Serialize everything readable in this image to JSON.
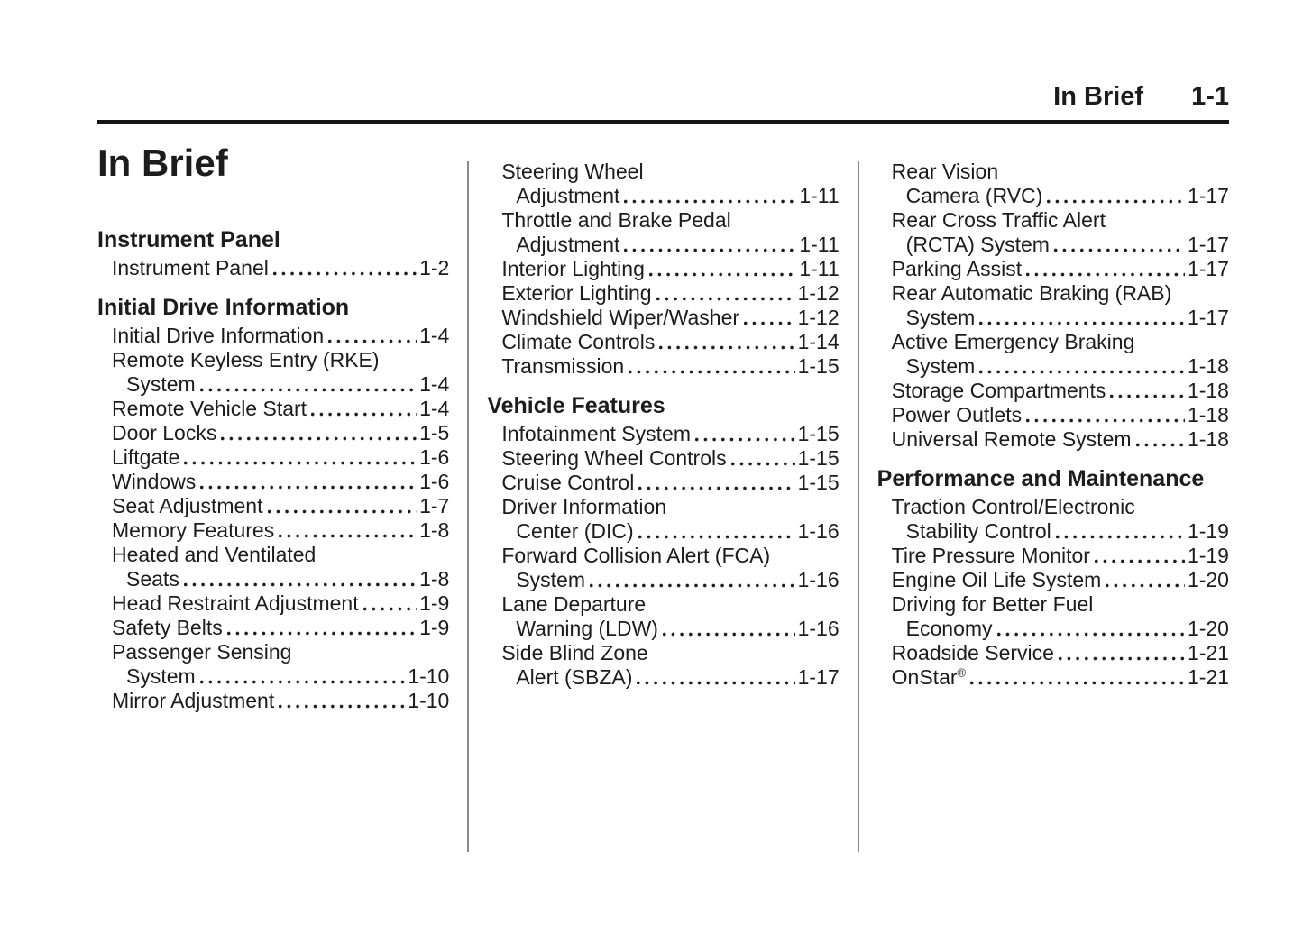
{
  "header": {
    "section_title": "In Brief",
    "page_number": "1-1"
  },
  "page_title": "In Brief",
  "colors": {
    "text": "#1c1c1c",
    "rule": "#141414",
    "divider": "#8a8a8a",
    "background": "#ffffff"
  },
  "columns": [
    {
      "sections": [
        {
          "heading": "Instrument Panel",
          "entries": [
            {
              "lines": [
                "Instrument Panel"
              ],
              "page": "1-2"
            }
          ]
        },
        {
          "heading": "Initial Drive Information",
          "entries": [
            {
              "lines": [
                "Initial Drive Information"
              ],
              "page": "1-4"
            },
            {
              "lines": [
                "Remote Keyless Entry (RKE)",
                "System"
              ],
              "page": "1-4"
            },
            {
              "lines": [
                "Remote Vehicle Start"
              ],
              "page": "1-4"
            },
            {
              "lines": [
                "Door Locks"
              ],
              "page": "1-5"
            },
            {
              "lines": [
                "Liftgate"
              ],
              "page": "1-6"
            },
            {
              "lines": [
                "Windows"
              ],
              "page": "1-6"
            },
            {
              "lines": [
                "Seat Adjustment"
              ],
              "page": "1-7"
            },
            {
              "lines": [
                "Memory Features"
              ],
              "page": "1-8"
            },
            {
              "lines": [
                "Heated and Ventilated",
                "Seats"
              ],
              "page": "1-8"
            },
            {
              "lines": [
                "Head Restraint Adjustment"
              ],
              "page": "1-9"
            },
            {
              "lines": [
                "Safety Belts"
              ],
              "page": "1-9"
            },
            {
              "lines": [
                "Passenger Sensing",
                "System"
              ],
              "page": "1-10"
            },
            {
              "lines": [
                "Mirror Adjustment"
              ],
              "page": "1-10"
            }
          ]
        }
      ]
    },
    {
      "sections": [
        {
          "heading": null,
          "entries": [
            {
              "lines": [
                "Steering Wheel",
                "Adjustment"
              ],
              "page": "1-11"
            },
            {
              "lines": [
                "Throttle and Brake Pedal",
                "Adjustment"
              ],
              "page": "1-11"
            },
            {
              "lines": [
                "Interior Lighting"
              ],
              "page": "1-11"
            },
            {
              "lines": [
                "Exterior Lighting"
              ],
              "page": "1-12"
            },
            {
              "lines": [
                "Windshield Wiper/Washer"
              ],
              "page": "1-12"
            },
            {
              "lines": [
                "Climate Controls"
              ],
              "page": "1-14"
            },
            {
              "lines": [
                "Transmission"
              ],
              "page": "1-15"
            }
          ]
        },
        {
          "heading": "Vehicle Features",
          "entries": [
            {
              "lines": [
                "Infotainment System"
              ],
              "page": "1-15"
            },
            {
              "lines": [
                "Steering Wheel Controls"
              ],
              "page": "1-15"
            },
            {
              "lines": [
                "Cruise Control"
              ],
              "page": "1-15"
            },
            {
              "lines": [
                "Driver Information",
                "Center (DIC)"
              ],
              "page": "1-16"
            },
            {
              "lines": [
                "Forward Collision Alert (FCA)",
                "System"
              ],
              "page": "1-16"
            },
            {
              "lines": [
                "Lane Departure",
                "Warning (LDW)"
              ],
              "page": "1-16"
            },
            {
              "lines": [
                "Side Blind Zone",
                "Alert (SBZA)"
              ],
              "page": "1-17"
            }
          ]
        }
      ]
    },
    {
      "sections": [
        {
          "heading": null,
          "entries": [
            {
              "lines": [
                "Rear Vision",
                "Camera (RVC)"
              ],
              "page": "1-17"
            },
            {
              "lines": [
                "Rear Cross Traffic Alert",
                "(RCTA) System"
              ],
              "page": "1-17"
            },
            {
              "lines": [
                "Parking Assist"
              ],
              "page": "1-17"
            },
            {
              "lines": [
                "Rear Automatic Braking (RAB)",
                "System"
              ],
              "page": "1-17"
            },
            {
              "lines": [
                "Active Emergency Braking",
                "System"
              ],
              "page": "1-18"
            },
            {
              "lines": [
                "Storage Compartments"
              ],
              "page": "1-18"
            },
            {
              "lines": [
                "Power Outlets"
              ],
              "page": "1-18"
            },
            {
              "lines": [
                "Universal Remote System"
              ],
              "page": "1-18"
            }
          ]
        },
        {
          "heading": "Performance and Maintenance",
          "entries": [
            {
              "lines": [
                "Traction Control/Electronic",
                "Stability Control"
              ],
              "page": "1-19"
            },
            {
              "lines": [
                "Tire Pressure Monitor"
              ],
              "page": "1-19"
            },
            {
              "lines": [
                "Engine Oil Life System"
              ],
              "page": "1-20"
            },
            {
              "lines": [
                "Driving for Better Fuel",
                "Economy"
              ],
              "page": "1-20"
            },
            {
              "lines": [
                "Roadside Service"
              ],
              "page": "1-21"
            },
            {
              "lines": [
                "OnStar"
              ],
              "sup": "®",
              "page": "1-21"
            }
          ]
        }
      ]
    }
  ]
}
